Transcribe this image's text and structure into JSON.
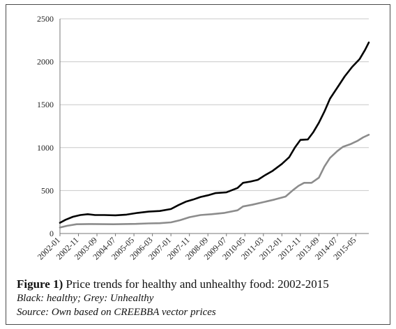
{
  "chart_data": {
    "type": "line",
    "title": "",
    "xlabel": "",
    "ylabel": "",
    "ylim": [
      0,
      2500
    ],
    "yticks": [
      0,
      500,
      1000,
      1500,
      2000,
      2500
    ],
    "xlim": [
      "2002-01",
      "2015-12"
    ],
    "xtick_labels": [
      "2002-01",
      "2002-11",
      "2003-09",
      "2004-07",
      "2005-05",
      "2006-03",
      "2007-01",
      "2007-11",
      "2008-09",
      "2009-07",
      "2010-05",
      "2011-03",
      "2012-01",
      "2012-11",
      "2013-09",
      "2014-07",
      "2015-05"
    ],
    "grid": "horizontal",
    "legend": "none",
    "series": [
      {
        "color": "#000000",
        "points": [
          [
            "2002-01",
            125
          ],
          [
            "2002-04",
            160
          ],
          [
            "2002-08",
            195
          ],
          [
            "2002-12",
            215
          ],
          [
            "2003-04",
            225
          ],
          [
            "2003-08",
            215
          ],
          [
            "2004-01",
            215
          ],
          [
            "2004-07",
            212
          ],
          [
            "2005-01",
            220
          ],
          [
            "2005-07",
            240
          ],
          [
            "2006-01",
            255
          ],
          [
            "2006-07",
            262
          ],
          [
            "2007-01",
            285
          ],
          [
            "2007-05",
            330
          ],
          [
            "2007-09",
            370
          ],
          [
            "2008-01",
            395
          ],
          [
            "2008-05",
            425
          ],
          [
            "2008-09",
            445
          ],
          [
            "2009-01",
            470
          ],
          [
            "2009-07",
            480
          ],
          [
            "2010-01",
            530
          ],
          [
            "2010-04",
            590
          ],
          [
            "2010-08",
            605
          ],
          [
            "2010-12",
            625
          ],
          [
            "2011-04",
            680
          ],
          [
            "2011-08",
            730
          ],
          [
            "2012-01",
            810
          ],
          [
            "2012-05",
            890
          ],
          [
            "2012-08",
            1000
          ],
          [
            "2012-11",
            1090
          ],
          [
            "2013-03",
            1095
          ],
          [
            "2013-06",
            1180
          ],
          [
            "2013-09",
            1290
          ],
          [
            "2013-12",
            1420
          ],
          [
            "2014-03",
            1570
          ],
          [
            "2014-07",
            1700
          ],
          [
            "2014-11",
            1830
          ],
          [
            "2015-03",
            1940
          ],
          [
            "2015-07",
            2030
          ],
          [
            "2015-10",
            2140
          ],
          [
            "2015-12",
            2225
          ]
        ]
      },
      {
        "color": "#8c8c8c",
        "points": [
          [
            "2002-01",
            70
          ],
          [
            "2002-05",
            90
          ],
          [
            "2002-10",
            108
          ],
          [
            "2003-06",
            110
          ],
          [
            "2004-06",
            108
          ],
          [
            "2005-06",
            112
          ],
          [
            "2006-01",
            118
          ],
          [
            "2006-07",
            120
          ],
          [
            "2007-01",
            130
          ],
          [
            "2007-06",
            155
          ],
          [
            "2007-11",
            190
          ],
          [
            "2008-05",
            215
          ],
          [
            "2008-11",
            225
          ],
          [
            "2009-06",
            240
          ],
          [
            "2010-01",
            270
          ],
          [
            "2010-04",
            315
          ],
          [
            "2010-09",
            335
          ],
          [
            "2011-03",
            365
          ],
          [
            "2011-09",
            395
          ],
          [
            "2012-03",
            430
          ],
          [
            "2012-07",
            505
          ],
          [
            "2012-10",
            555
          ],
          [
            "2013-01",
            590
          ],
          [
            "2013-05",
            590
          ],
          [
            "2013-09",
            650
          ],
          [
            "2013-12",
            780
          ],
          [
            "2014-03",
            880
          ],
          [
            "2014-07",
            960
          ],
          [
            "2014-10",
            1010
          ],
          [
            "2015-02",
            1040
          ],
          [
            "2015-06",
            1080
          ],
          [
            "2015-09",
            1120
          ],
          [
            "2015-12",
            1150
          ]
        ]
      }
    ]
  },
  "caption": {
    "figure_label": "Figure 1)",
    "title": "Price trends for healthy and unhealthy food: 2002-2015",
    "legend_text": "Black: healthy; Grey: Unhealthy",
    "source": "Source: Own based on CREEBBA vector prices"
  }
}
